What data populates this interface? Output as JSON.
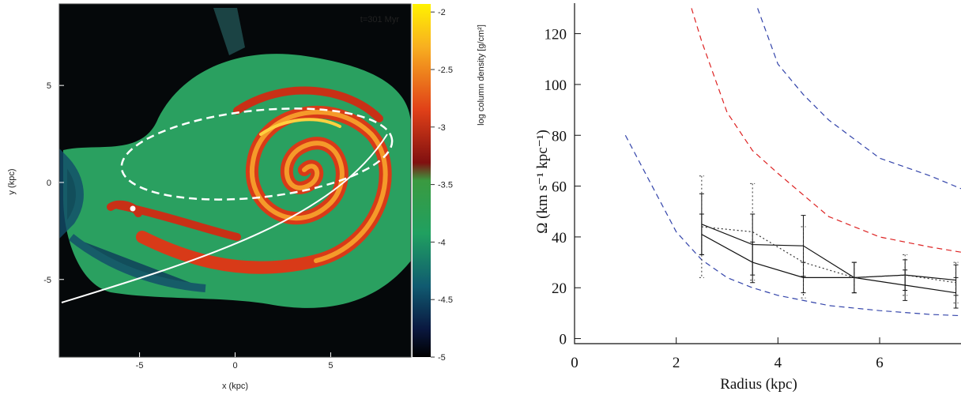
{
  "chart_data": [
    {
      "type": "image",
      "annotation": "t=301 Myr",
      "xlabel": "x (kpc)",
      "ylabel": "y (kpc)",
      "xlim": [
        -9.2,
        9.2
      ],
      "ylim": [
        -9,
        9.2
      ],
      "xticks": [
        -5,
        0,
        5
      ],
      "yticks": [
        -5,
        0,
        5
      ],
      "colorbar": {
        "label": "log column density [g/cm²]",
        "lim": [
          -5,
          -1.93
        ],
        "ticks": [
          -2,
          -2.5,
          -3,
          -3.5,
          -4,
          -4.5,
          -5
        ]
      }
    },
    {
      "type": "line",
      "xlabel": "Radius (kpc)",
      "ylabel": "Ω (km s⁻¹ kpc⁻¹)",
      "xlim": [
        0,
        7.6
      ],
      "ylim": [
        -2,
        132
      ],
      "xticks": [
        0,
        2,
        4,
        6
      ],
      "yticks": [
        0,
        20,
        40,
        60,
        80,
        100,
        120
      ],
      "series": [
        {
          "color": "#3344aa",
          "dash": "dashed",
          "x": [
            1,
            1.5,
            2,
            2.5,
            3,
            3.5,
            4,
            5,
            6,
            7,
            7.6
          ],
          "values": [
            80,
            61,
            42,
            31,
            24,
            20,
            17,
            13,
            11,
            9.5,
            9
          ]
        },
        {
          "color": "#dd2222",
          "dash": "dashed",
          "x": [
            2.3,
            2.5,
            3,
            3.5,
            4,
            5,
            6,
            7,
            7.6
          ],
          "values": [
            130,
            117,
            89,
            74,
            65,
            48,
            40,
            36,
            34
          ]
        },
        {
          "color": "#3344aa",
          "dash": "dashed",
          "x": [
            3.6,
            4,
            4.5,
            5,
            6,
            7,
            7.6
          ],
          "values": [
            130,
            108,
            96,
            86,
            71,
            64,
            59
          ]
        },
        {
          "color": "#111111",
          "dash": "solid",
          "x": [
            2.5,
            3.5,
            4.5,
            5.5,
            6.5,
            7.5
          ],
          "values": [
            45,
            37,
            36.5,
            24,
            25,
            23
          ],
          "errors": [
            12,
            12,
            12,
            6,
            6,
            6
          ]
        },
        {
          "color": "#111111",
          "dash": "solid",
          "x": [
            2.5,
            3.5,
            4.5,
            5.5,
            6.5,
            7.5
          ],
          "values": [
            41,
            30,
            24,
            24,
            21,
            18
          ],
          "errors": [
            8,
            8,
            6,
            6,
            6,
            6
          ]
        },
        {
          "color": "#333333",
          "dash": "dotted",
          "x": [
            2.5,
            3.5,
            4.5,
            5.5,
            6.5,
            7.5
          ],
          "values": [
            44,
            42,
            30,
            24,
            25,
            22
          ],
          "errors": [
            20,
            19,
            14,
            6,
            8,
            8
          ]
        }
      ]
    }
  ]
}
